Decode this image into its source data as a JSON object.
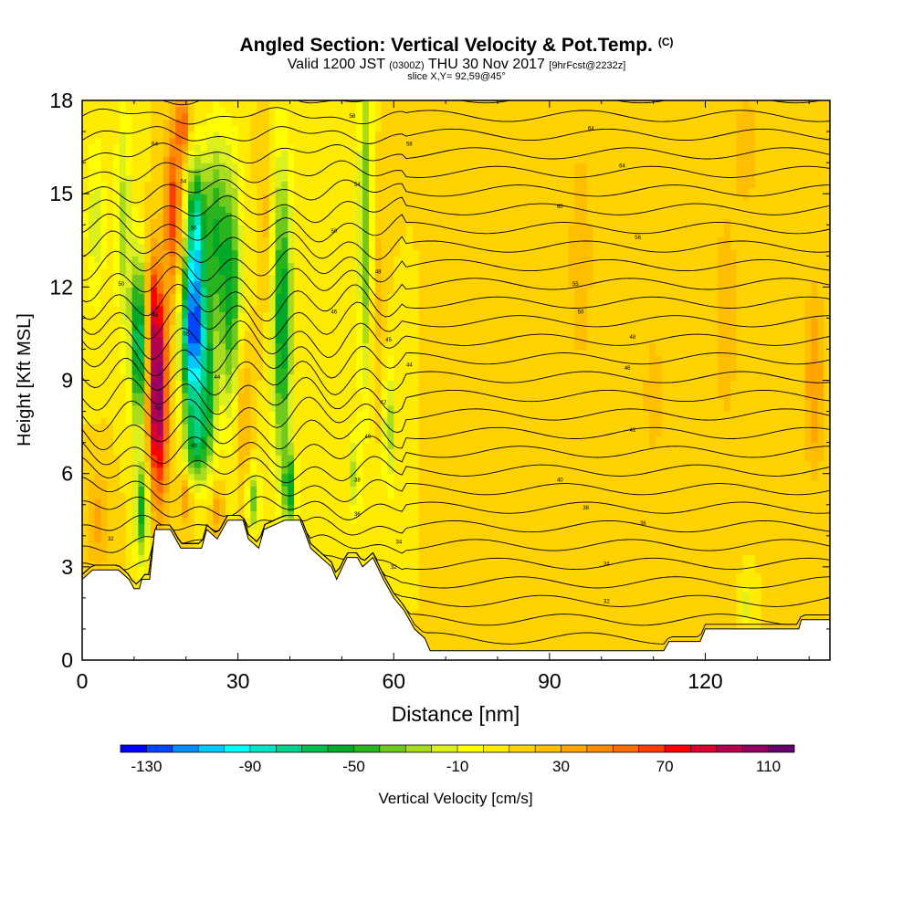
{
  "header": {
    "title": "Angled Section: Vertical Velocity & Pot.Temp.",
    "title_units": "(C)",
    "valid_prefix": "Valid 1200 JST",
    "valid_utc": "(0300Z)",
    "valid_date": "THU 30 Nov 2017",
    "forecast_info": "[9hrFcst@2232z]",
    "slice_info": "slice X,Y= 92,59@45°"
  },
  "chart_data": {
    "type": "heatmap",
    "title": "Angled Section: Vertical Velocity & Pot.Temp.",
    "xlabel": "Distance [nm]",
    "ylabel": "Height [Kft MSL]",
    "xlim": [
      0,
      144
    ],
    "ylim": [
      0,
      18
    ],
    "x_ticks": [
      0,
      30,
      60,
      90,
      120
    ],
    "y_ticks": [
      0,
      3,
      6,
      9,
      12,
      15,
      18
    ],
    "colorbar": {
      "label": "Vertical Velocity [cm/s]",
      "tick_labels": [
        "-130",
        "-90",
        "-50",
        "-10",
        "30",
        "70",
        "110"
      ],
      "tick_values": [
        -130,
        -90,
        -50,
        -10,
        30,
        70,
        110
      ],
      "range": [
        -140,
        120
      ],
      "step": 10,
      "colors": [
        "#0000ff",
        "#0046ff",
        "#008cff",
        "#00c8ff",
        "#00ffff",
        "#00e6c8",
        "#00d28c",
        "#00be50",
        "#00aa28",
        "#28b41e",
        "#6ec81e",
        "#aadc1e",
        "#dcf01e",
        "#ffff00",
        "#ffeb00",
        "#ffd200",
        "#ffbe00",
        "#ffa500",
        "#ff8c00",
        "#ff6e00",
        "#ff3c00",
        "#ff0000",
        "#dc0032",
        "#b40050",
        "#960064",
        "#64006e"
      ]
    },
    "background_velocity": 10,
    "terrain_kft": [
      [
        0,
        2.6
      ],
      [
        2,
        2.9
      ],
      [
        7,
        2.9
      ],
      [
        9,
        2.6
      ],
      [
        10,
        2.3
      ],
      [
        11,
        2.3
      ],
      [
        11.5,
        2.6
      ],
      [
        13,
        2.6
      ],
      [
        14,
        4.2
      ],
      [
        17,
        4.2
      ],
      [
        19,
        3.6
      ],
      [
        23,
        3.6
      ],
      [
        24,
        4.2
      ],
      [
        26,
        3.9
      ],
      [
        28,
        4.5
      ],
      [
        31,
        4.5
      ],
      [
        32,
        3.9
      ],
      [
        34,
        3.6
      ],
      [
        35,
        4.2
      ],
      [
        39,
        4.5
      ],
      [
        42,
        4.5
      ],
      [
        44,
        3.6
      ],
      [
        46,
        3.3
      ],
      [
        48,
        3.0
      ],
      [
        49,
        2.6
      ],
      [
        51,
        3.3
      ],
      [
        53,
        3.3
      ],
      [
        54,
        3.0
      ],
      [
        56,
        3.3
      ],
      [
        58,
        2.6
      ],
      [
        60,
        2.0
      ],
      [
        62,
        1.6
      ],
      [
        64,
        1.0
      ],
      [
        66,
        0.7
      ],
      [
        67,
        0.3
      ],
      [
        112,
        0.3
      ],
      [
        113,
        0.6
      ],
      [
        119,
        0.6
      ],
      [
        120,
        1.0
      ],
      [
        138,
        1.0
      ],
      [
        138.5,
        1.3
      ],
      [
        144,
        1.3
      ]
    ],
    "velocity_features": [
      {
        "x": 14.5,
        "y": 8.5,
        "sx": 2.0,
        "sy": 3.3,
        "value": 110
      },
      {
        "x": 13.5,
        "y": 11.5,
        "sx": 1.6,
        "sy": 2.0,
        "value": 45
      },
      {
        "x": 11.0,
        "y": 10.2,
        "sx": 1.6,
        "sy": 2.8,
        "value": -80
      },
      {
        "x": 11.5,
        "y": 4.8,
        "sx": 1.4,
        "sy": 1.6,
        "value": -55
      },
      {
        "x": 21.5,
        "y": 10.5,
        "sx": 2.4,
        "sy": 2.5,
        "value": -125
      },
      {
        "x": 22.0,
        "y": 14.0,
        "sx": 1.8,
        "sy": 2.2,
        "value": -70
      },
      {
        "x": 22.0,
        "y": 7.0,
        "sx": 2.2,
        "sy": 1.4,
        "value": -50
      },
      {
        "x": 17.5,
        "y": 14.5,
        "sx": 1.6,
        "sy": 2.8,
        "value": 65
      },
      {
        "x": 20.0,
        "y": 5.2,
        "sx": 1.2,
        "sy": 0.8,
        "value": 45
      },
      {
        "x": 19.5,
        "y": 17.2,
        "sx": 1.2,
        "sy": 1.0,
        "value": 60
      },
      {
        "x": 28.5,
        "y": 12.0,
        "sx": 2.2,
        "sy": 4.0,
        "value": -55
      },
      {
        "x": 25.5,
        "y": 14.0,
        "sx": 1.8,
        "sy": 3.0,
        "value": -40
      },
      {
        "x": 24.5,
        "y": 8.5,
        "sx": 1.5,
        "sy": 2.2,
        "value": -35
      },
      {
        "x": 31.0,
        "y": 8.0,
        "sx": 1.5,
        "sy": 2.5,
        "value": 35
      },
      {
        "x": 26.0,
        "y": 4.8,
        "sx": 1.2,
        "sy": 0.8,
        "value": 40
      },
      {
        "x": 33.0,
        "y": 5.2,
        "sx": 1.2,
        "sy": 1.0,
        "value": -40
      },
      {
        "x": 38.5,
        "y": 11.0,
        "sx": 2.0,
        "sy": 5.0,
        "value": -60
      },
      {
        "x": 40.0,
        "y": 5.5,
        "sx": 1.2,
        "sy": 1.2,
        "value": -50
      },
      {
        "x": 35.5,
        "y": 14.0,
        "sx": 1.4,
        "sy": 3.0,
        "value": 25
      },
      {
        "x": 54.5,
        "y": 14.0,
        "sx": 1.3,
        "sy": 5.5,
        "value": -40
      },
      {
        "x": 52.5,
        "y": 6.0,
        "sx": 1.0,
        "sy": 1.5,
        "value": -25
      },
      {
        "x": 59.0,
        "y": 7.5,
        "sx": 1.0,
        "sy": 2.0,
        "value": -30
      },
      {
        "x": 57.0,
        "y": 12.0,
        "sx": 1.2,
        "sy": 3.0,
        "value": 25
      },
      {
        "x": 3.0,
        "y": 4.5,
        "sx": 2.5,
        "sy": 1.5,
        "value": 35
      },
      {
        "x": 8.0,
        "y": 14.0,
        "sx": 1.5,
        "sy": 4.0,
        "value": -25
      },
      {
        "x": 2.5,
        "y": 14.0,
        "sx": 2.0,
        "sy": 3.0,
        "value": -15
      },
      {
        "x": 96.0,
        "y": 13.0,
        "sx": 2.5,
        "sy": 4.0,
        "value": 28
      },
      {
        "x": 110.0,
        "y": 8.5,
        "sx": 2.5,
        "sy": 3.0,
        "value": 24
      },
      {
        "x": 124.0,
        "y": 11.0,
        "sx": 2.5,
        "sy": 4.0,
        "value": 28
      },
      {
        "x": 128.0,
        "y": 16.5,
        "sx": 2.5,
        "sy": 2.0,
        "value": 28
      },
      {
        "x": 141.0,
        "y": 9.0,
        "sx": 2.0,
        "sy": 3.0,
        "value": 40
      },
      {
        "x": 128.0,
        "y": 1.8,
        "sx": 0.8,
        "sy": 0.6,
        "value": -20
      }
    ],
    "theta_contour_labels": [
      {
        "x": 14,
        "y": 16.6,
        "text": "64"
      },
      {
        "x": 19.5,
        "y": 15.4,
        "text": "54"
      },
      {
        "x": 21.5,
        "y": 13.9,
        "text": "56"
      },
      {
        "x": 7.5,
        "y": 12.1,
        "text": "50"
      },
      {
        "x": 14,
        "y": 11.1,
        "text": "46"
      },
      {
        "x": 20,
        "y": 10.5,
        "text": "56"
      },
      {
        "x": 14.5,
        "y": 8.1,
        "text": "48"
      },
      {
        "x": 26,
        "y": 9.1,
        "text": "44"
      },
      {
        "x": 21.5,
        "y": 6.9,
        "text": "40"
      },
      {
        "x": 5.5,
        "y": 3.9,
        "text": "32"
      },
      {
        "x": 52,
        "y": 17.5,
        "text": "58"
      },
      {
        "x": 63,
        "y": 16.6,
        "text": "58"
      },
      {
        "x": 53,
        "y": 15.3,
        "text": "54"
      },
      {
        "x": 48.5,
        "y": 13.8,
        "text": "50"
      },
      {
        "x": 57,
        "y": 12.5,
        "text": "48"
      },
      {
        "x": 48.5,
        "y": 11.2,
        "text": "46"
      },
      {
        "x": 59,
        "y": 10.3,
        "text": "45"
      },
      {
        "x": 63,
        "y": 9.5,
        "text": "44"
      },
      {
        "x": 58,
        "y": 8.3,
        "text": "42"
      },
      {
        "x": 55,
        "y": 7.2,
        "text": "40"
      },
      {
        "x": 53,
        "y": 5.8,
        "text": "38"
      },
      {
        "x": 53,
        "y": 4.7,
        "text": "36"
      },
      {
        "x": 61,
        "y": 3.8,
        "text": "34"
      },
      {
        "x": 60,
        "y": 3.0,
        "text": "32"
      },
      {
        "x": 98,
        "y": 17.1,
        "text": "64"
      },
      {
        "x": 104,
        "y": 15.9,
        "text": "64"
      },
      {
        "x": 92,
        "y": 14.6,
        "text": "60"
      },
      {
        "x": 107,
        "y": 13.6,
        "text": "56"
      },
      {
        "x": 95,
        "y": 12.1,
        "text": "55"
      },
      {
        "x": 96,
        "y": 11.2,
        "text": "50"
      },
      {
        "x": 106,
        "y": 10.4,
        "text": "48"
      },
      {
        "x": 105,
        "y": 9.4,
        "text": "46"
      },
      {
        "x": 106,
        "y": 7.4,
        "text": "42"
      },
      {
        "x": 92,
        "y": 5.8,
        "text": "40"
      },
      {
        "x": 97,
        "y": 4.9,
        "text": "38"
      },
      {
        "x": 108,
        "y": 4.4,
        "text": "36"
      },
      {
        "x": 101,
        "y": 3.1,
        "text": "34"
      },
      {
        "x": 101,
        "y": 1.9,
        "text": "32"
      }
    ]
  }
}
